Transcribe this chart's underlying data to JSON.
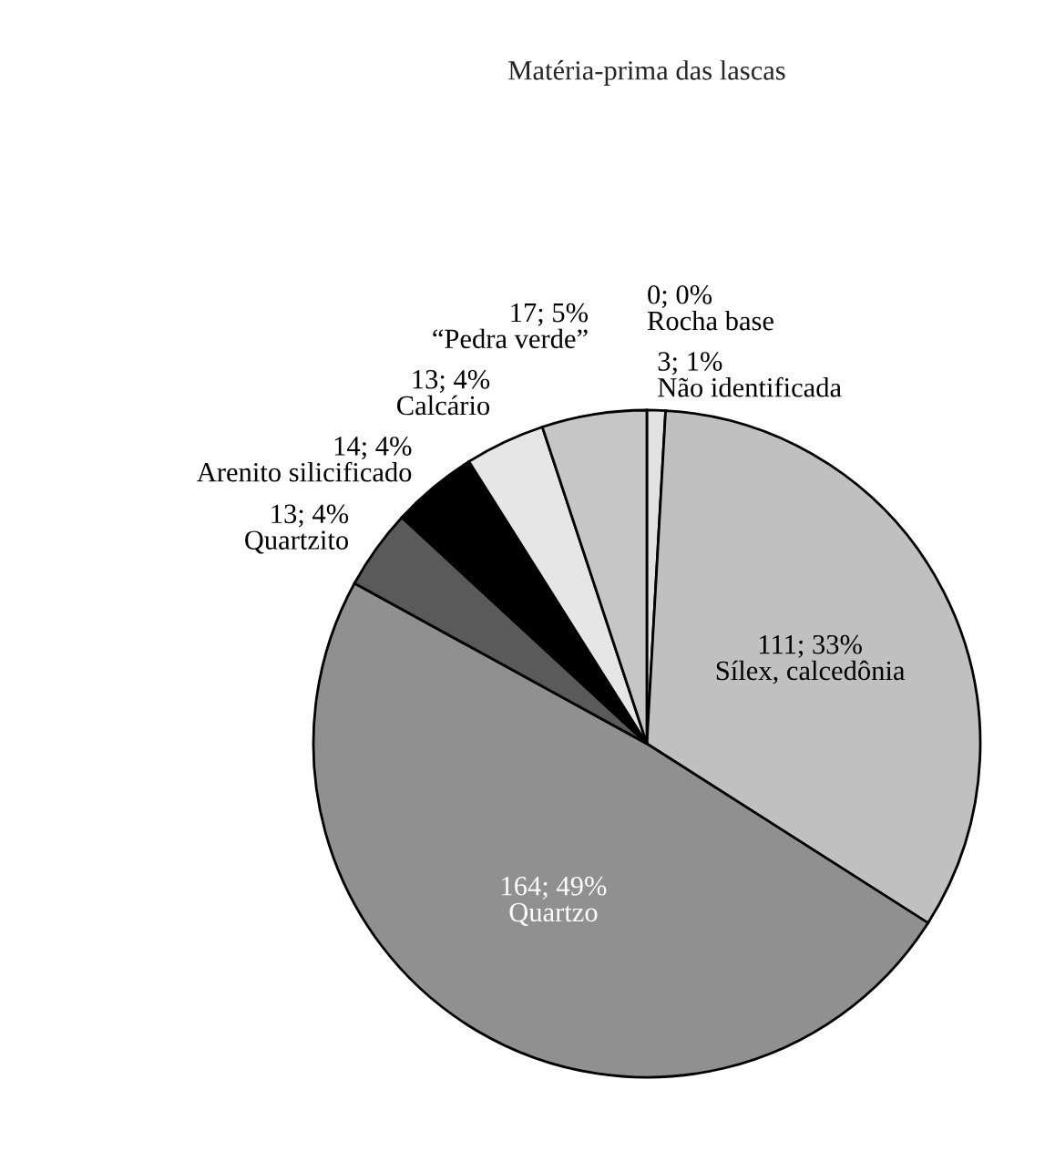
{
  "chart_data": {
    "type": "pie",
    "title": "Matéria-prima das lascas",
    "categories": [
      "Rocha base",
      "Não identificada",
      "Sílex, calcedônia",
      "Quartzo",
      "Quartzito",
      "Arenito silicificado",
      "Calcário",
      "“Pedra verde”"
    ],
    "values": [
      0,
      3,
      111,
      164,
      13,
      14,
      13,
      17
    ],
    "value_labels": [
      "0; 0%",
      "3; 1%",
      "111; 33%",
      "164; 49%",
      "13; 4%",
      "14; 4%",
      "13; 4%",
      "17; 5%"
    ],
    "colors": [
      "#ffffff",
      "#e2e2e2",
      "#c0c0c0",
      "#909090",
      "#5a5a5a",
      "#000000",
      "#e6e6e6",
      "#c6c6c6"
    ],
    "legend": false
  }
}
